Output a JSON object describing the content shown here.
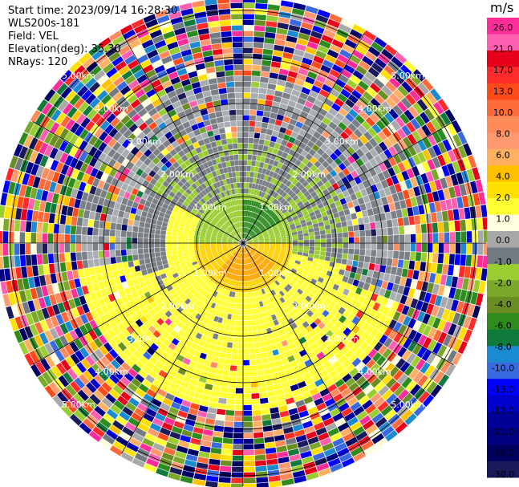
{
  "info": {
    "start_time": "Start time: 2023/09/14 16:28:30",
    "instrument": "WLS200s-181",
    "field": "Field: VEL",
    "elevation": "Elevation(deg): 35.30",
    "nrays": "NRays: 120"
  },
  "range_labels": [
    "1.00km",
    "2.00km",
    "3.00km",
    "4.00km",
    "5.00km"
  ],
  "colorbar": {
    "unit": "m/s",
    "ticks": [
      "26.0",
      "21.0",
      "17.0",
      "13.0",
      "10.0",
      "8.0",
      "6.0",
      "4.0",
      "2.0",
      "1.0",
      "0.0",
      "-1.0",
      "-2.0",
      "-4.0",
      "-6.0",
      "-8.0",
      "-10.0",
      "-13.0",
      "-17.0",
      "-21.0",
      "-26.0",
      "-30.0"
    ],
    "colors": [
      "#ff2d9a",
      "#ff5fb0",
      "#e8001a",
      "#ff2a2a",
      "#ff4a1a",
      "#ff6a3a",
      "#ff8a5a",
      "#ff9a70",
      "#ffb060",
      "#ffc000",
      "#ffe000",
      "#ffff33",
      "#ffffe0",
      "#a8a8a8",
      "#707a80",
      "#9acd32",
      "#7aa82a",
      "#6b8e23",
      "#2e8b1e",
      "#0f7a3c",
      "#1a8bd0",
      "#3a6ae0",
      "#0000ff",
      "#0000cc",
      "#000099",
      "#000080",
      "#000060",
      "#1a1a5a"
    ]
  }
}
